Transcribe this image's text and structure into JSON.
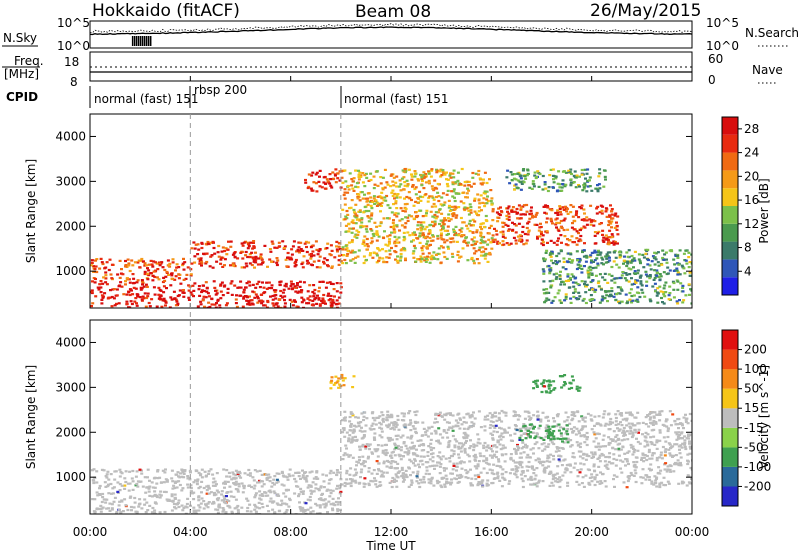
{
  "header": {
    "station": "Hokkaido (fitACF)",
    "beam": "Beam 08",
    "date": "26/May/2015"
  },
  "panels": {
    "nsky": {
      "label": "N.Sky",
      "ticks": [
        "10^5",
        "10^0"
      ]
    },
    "nsearch": {
      "label": "N.Search",
      "ticks": [
        "10^5",
        "10^0"
      ]
    },
    "freq": {
      "label_line1": "Freq.",
      "label_line2": "[MHz]",
      "ticks": [
        "18",
        "8"
      ]
    },
    "nave": {
      "label": "Nave",
      "ticks": [
        "60",
        "0"
      ]
    },
    "cpid": {
      "label": "CPID",
      "segments": [
        {
          "text": "normal (fast) 151",
          "start_hr": 0,
          "end_hr": 4
        },
        {
          "text": "rbsp 200",
          "start_hr": 4,
          "end_hr": 10
        },
        {
          "text": "normal (fast) 151",
          "start_hr": 10,
          "end_hr": 24
        }
      ]
    }
  },
  "chart_data": [
    {
      "type": "heatmap",
      "title": "",
      "xlabel": "Time UT",
      "ylabel": "Slant Range [km]",
      "xlim": [
        0,
        24
      ],
      "ylim": [
        180,
        4500
      ],
      "x_ticks": [
        "00:00",
        "04:00",
        "08:00",
        "12:00",
        "16:00",
        "20:00",
        "00:00"
      ],
      "y_ticks": [
        1000,
        2000,
        3000,
        4000
      ],
      "colorbar": {
        "label": "Power [dB]",
        "ticks": [
          4,
          8,
          12,
          16,
          20,
          24,
          28
        ],
        "range": [
          0,
          30
        ],
        "colors": [
          "#1f1fe6",
          "#2f56b8",
          "#3b7a6a",
          "#4a9a4e",
          "#7cc04a",
          "#f5c518",
          "#f59a18",
          "#f06a12",
          "#e82a0f",
          "#d80d0d"
        ]
      },
      "regions": [
        {
          "t0": 0.0,
          "t1": 10.0,
          "r0": 200,
          "r1": 800,
          "level": 29
        },
        {
          "t0": 0.0,
          "t1": 4.0,
          "r0": 800,
          "r1": 1300,
          "level": 24
        },
        {
          "t0": 4.0,
          "t1": 10.0,
          "r0": 1100,
          "r1": 1700,
          "level": 26
        },
        {
          "t0": 8.5,
          "t1": 10.0,
          "r0": 2800,
          "r1": 3300,
          "level": 27
        },
        {
          "t0": 10.0,
          "t1": 16.0,
          "r0": 1200,
          "r1": 3300,
          "level": 18
        },
        {
          "t0": 16.0,
          "t1": 21.0,
          "r0": 1600,
          "r1": 2500,
          "level": 25
        },
        {
          "t0": 16.5,
          "t1": 20.5,
          "r0": 2800,
          "r1": 3300,
          "level": 10
        },
        {
          "t0": 18.0,
          "t1": 24.0,
          "r0": 300,
          "r1": 1500,
          "level": 10
        }
      ]
    },
    {
      "type": "heatmap",
      "title": "",
      "xlabel": "Time UT",
      "ylabel": "Slant Range [km]",
      "xlim": [
        0,
        24
      ],
      "ylim": [
        180,
        4500
      ],
      "x_ticks": [
        "00:00",
        "04:00",
        "08:00",
        "12:00",
        "16:00",
        "20:00",
        "00:00"
      ],
      "y_ticks": [
        1000,
        2000,
        3000,
        4000
      ],
      "colorbar": {
        "label": "Velocity [m s^-1]",
        "ticks": [
          200,
          100,
          50,
          15,
          -15,
          -50,
          -100,
          -200
        ],
        "colors": [
          "#2828c8",
          "#2a6a9a",
          "#3fa050",
          "#8ad24a",
          "#bdbdbd",
          "#f5c518",
          "#f58a18",
          "#f04a12",
          "#e01010"
        ]
      },
      "ground_scatter_color": "#bdbdbd",
      "regions": [
        {
          "t0": 0.0,
          "t1": 10.0,
          "r0": 200,
          "r1": 1200,
          "velocity": 0
        },
        {
          "t0": 10.0,
          "t1": 24.0,
          "r0": 800,
          "r1": 2500,
          "velocity": 0
        },
        {
          "t0": 17.0,
          "t1": 19.0,
          "r0": 1800,
          "r1": 2200,
          "velocity": 60
        },
        {
          "t0": 17.5,
          "t1": 19.5,
          "r0": 2900,
          "r1": 3300,
          "velocity": 55
        },
        {
          "t0": 9.5,
          "t1": 10.5,
          "r0": 3000,
          "r1": 3300,
          "velocity": -30
        }
      ]
    }
  ]
}
